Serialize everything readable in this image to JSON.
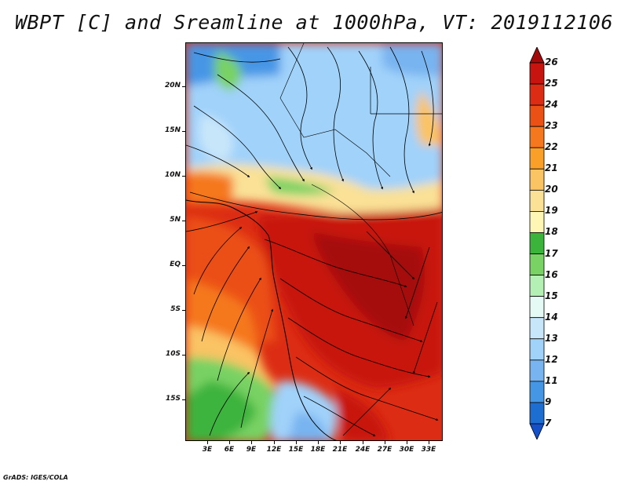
{
  "title": "WBPT [C] and Sreamline at 1000hPa, VT: 2019112106",
  "footer": "GrADS: IGES/COLA",
  "lat_labels": [
    "20N",
    "15N",
    "10N",
    "5N",
    "EQ",
    "5S",
    "10S",
    "15S"
  ],
  "lon_labels": [
    "3E",
    "6E",
    "9E",
    "12E",
    "15E",
    "18E",
    "21E",
    "24E",
    "27E",
    "30E",
    "33E"
  ],
  "colorbar": {
    "labels": [
      "26",
      "25",
      "24",
      "23",
      "22",
      "21",
      "20",
      "19",
      "18",
      "17",
      "16",
      "15",
      "14",
      "13",
      "12",
      "11",
      "9",
      "7"
    ],
    "colors": [
      "#a50a0a",
      "#c8140f",
      "#dc2d14",
      "#eb5014",
      "#f5781e",
      "#faa028",
      "#fac364",
      "#fae196",
      "#fff5b4",
      "#3cb43c",
      "#78d264",
      "#b4f0b4",
      "#e6faf5",
      "#c8e6fa",
      "#a0d2fa",
      "#78b4f0",
      "#4696e6",
      "#1e6ed2",
      "#1450c8"
    ]
  }
}
